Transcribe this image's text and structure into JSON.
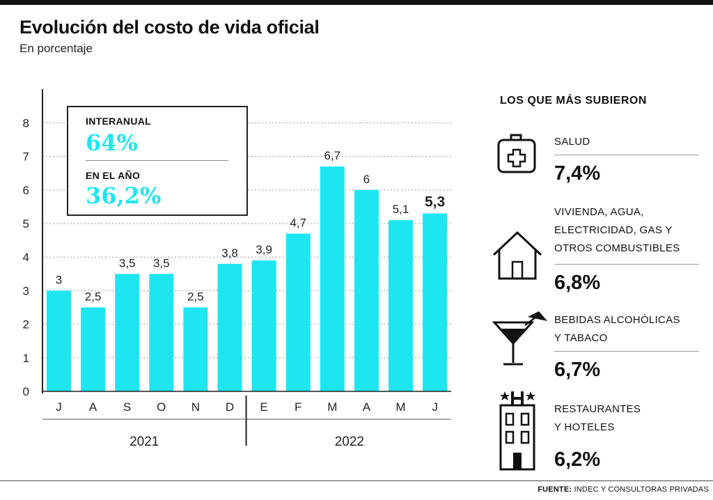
{
  "title": "Evolución del costo de vida oficial",
  "subtitle": "En porcentaje",
  "infobox": {
    "interanual_label": "INTERANUAL",
    "interanual_value": "64%",
    "anio_label": "EN EL AÑO",
    "anio_value": "36,2%",
    "value_color": "#1ee6f0"
  },
  "chart_data": {
    "type": "bar",
    "categories": [
      "J",
      "A",
      "S",
      "O",
      "N",
      "D",
      "E",
      "F",
      "M",
      "A",
      "M",
      "J"
    ],
    "values": [
      3,
      2.5,
      3.5,
      3.5,
      2.5,
      3.8,
      3.9,
      4.7,
      6.7,
      6,
      5.1,
      5.3
    ],
    "value_labels": [
      "3",
      "2,5",
      "3,5",
      "3,5",
      "2,5",
      "3,8",
      "3,9",
      "4,7",
      "6,7",
      "6",
      "5,1",
      "5,3"
    ],
    "highlight_last": true,
    "years": [
      {
        "label": "2021",
        "span": [
          0,
          5
        ]
      },
      {
        "label": "2022",
        "span": [
          6,
          11
        ]
      }
    ],
    "yticks": [
      0,
      1,
      2,
      3,
      4,
      5,
      6,
      7,
      8
    ],
    "ylim": [
      0,
      8
    ],
    "grid": "dotted",
    "bar_color": "#1ee6f0"
  },
  "sidebar": {
    "title": "LOS QUE MÁS SUBIERON",
    "items": [
      {
        "icon": "medical-kit-icon",
        "label_lines": [
          "SALUD"
        ],
        "value": "7,4%"
      },
      {
        "icon": "house-icon",
        "label_lines": [
          "VIVIENDA, AGUA,",
          "ELECTRICIDAD, GAS Y",
          "OTROS COMBUSTIBLES"
        ],
        "value": "6,8%"
      },
      {
        "icon": "cocktail-icon",
        "label_lines": [
          "BEBIDAS ALCOHÓLICAS",
          "Y TABACO"
        ],
        "value": "6,7%"
      },
      {
        "icon": "hotel-icon",
        "label_lines": [
          "RESTAURANTES",
          "Y HOTELES"
        ],
        "value": "6,2%"
      }
    ]
  },
  "source": {
    "label": "FUENTE:",
    "text": " INDEC Y CONSULTORAS PRIVADAS"
  }
}
